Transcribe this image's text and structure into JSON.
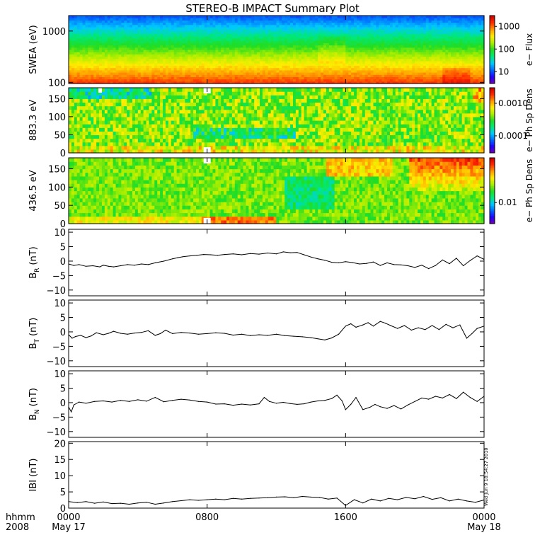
{
  "title": "STEREO-B IMPACT Summary Plot",
  "timestamp": "Wed Jun  9 18:54:27 2010",
  "time_axis": {
    "label_line1": "hhmm",
    "label_line2": "2008",
    "ticks": [
      {
        "hours": 0,
        "label": "0000",
        "sublabel": "May 17"
      },
      {
        "hours": 8,
        "label": "0800",
        "sublabel": ""
      },
      {
        "hours": 16,
        "label": "1600",
        "sublabel": ""
      },
      {
        "hours": 24,
        "label": "0000",
        "sublabel": "May 18"
      }
    ],
    "range_hours": [
      0,
      24
    ]
  },
  "colors": {
    "spectrum": [
      "#7a00b0",
      "#2000ff",
      "#0066ff",
      "#00c8ff",
      "#00e87a",
      "#22dd22",
      "#aaee00",
      "#ffee00",
      "#ff9900",
      "#ff2a00",
      "#cc0000"
    ],
    "gap": "#ffffff",
    "line": "#000000"
  },
  "chart_data": [
    {
      "type": "heatmap",
      "ylabel": "SWEA (eV)",
      "yscale": "log",
      "ylim": [
        95,
        2000
      ],
      "yticks": [
        {
          "value": 100,
          "label": "100"
        },
        {
          "value": 1000,
          "label": "1000"
        }
      ],
      "colorbar": {
        "label": "e− Flux",
        "scale": "log",
        "range": [
          3,
          3000
        ],
        "ticks": [
          {
            "value": 10,
            "label": "10"
          },
          {
            "value": 100,
            "label": "100"
          },
          {
            "value": 1000,
            "label": "1000"
          }
        ]
      }
    },
    {
      "type": "heatmap",
      "ylabel": "883.3 eV",
      "ylim": [
        0,
        180
      ],
      "yticks": [
        {
          "value": 0,
          "label": "0"
        },
        {
          "value": 50,
          "label": "50"
        },
        {
          "value": 100,
          "label": "100"
        },
        {
          "value": 150,
          "label": "150"
        }
      ],
      "colorbar": {
        "label": "e− Ph Sp Dens",
        "scale": "log",
        "range": [
          3e-05,
          0.003
        ],
        "ticks": [
          {
            "value": 0.0001,
            "label": "0.0001"
          },
          {
            "value": 0.001,
            "label": "0.0010"
          }
        ]
      }
    },
    {
      "type": "heatmap",
      "ylabel": "436.5 eV",
      "ylim": [
        0,
        180
      ],
      "yticks": [
        {
          "value": 0,
          "label": "0"
        },
        {
          "value": 50,
          "label": "50"
        },
        {
          "value": 100,
          "label": "100"
        },
        {
          "value": 150,
          "label": "150"
        }
      ],
      "colorbar": {
        "label": "e− Ph Sp Dens",
        "scale": "log",
        "range": [
          0.004,
          0.07
        ],
        "ticks": [
          {
            "value": 0.01,
            "label": "0.01"
          }
        ]
      }
    },
    {
      "type": "line",
      "ylabel": "B_R (nT)",
      "ylabel_main": "B",
      "ylabel_sub": "R",
      "ylabel_unit": "(nT)",
      "ylim": [
        -12,
        11
      ],
      "yticks": [
        {
          "value": -10,
          "label": "−10"
        },
        {
          "value": -5,
          "label": "−5"
        },
        {
          "value": 0,
          "label": "0"
        },
        {
          "value": 5,
          "label": "5"
        },
        {
          "value": 10,
          "label": "10"
        }
      ],
      "x": [
        0,
        0.3,
        0.6,
        1,
        1.4,
        1.8,
        2,
        2.3,
        2.6,
        3,
        3.4,
        3.8,
        4.2,
        4.6,
        5,
        5.5,
        6,
        6.3,
        6.6,
        7,
        7.4,
        7.8,
        8.2,
        8.6,
        9,
        9.5,
        10,
        10.5,
        11,
        11.5,
        12,
        12.4,
        12.8,
        13.2,
        13.6,
        14,
        14.4,
        14.8,
        15.2,
        15.6,
        16,
        16.4,
        16.8,
        17.2,
        17.6,
        18,
        18.4,
        18.8,
        19.2,
        19.6,
        20,
        20.4,
        20.8,
        21.2,
        21.6,
        22,
        22.4,
        22.8,
        23.2,
        23.6,
        24
      ],
      "y": [
        -1,
        -1.5,
        -1.2,
        -1.8,
        -1.6,
        -2,
        -1.4,
        -1.8,
        -2,
        -1.6,
        -1.2,
        -1.4,
        -1,
        -1.2,
        -0.6,
        0,
        0.8,
        1.2,
        1.5,
        1.8,
        2,
        2.3,
        2.2,
        2,
        2.3,
        2.5,
        2.2,
        2.6,
        2.4,
        2.8,
        2.5,
        3.2,
        2.9,
        3,
        2.2,
        1.4,
        0.8,
        0.3,
        -0.4,
        -0.6,
        -0.2,
        -0.5,
        -1,
        -0.8,
        -0.3,
        -1.5,
        -0.6,
        -1.2,
        -1.3,
        -1.6,
        -2.2,
        -1.4,
        -2.6,
        -1.5,
        0.4,
        -0.9,
        1,
        -1.6,
        0.2,
        1.8,
        0.6
      ]
    },
    {
      "type": "line",
      "ylabel": "B_T (nT)",
      "ylabel_main": "B",
      "ylabel_sub": "T",
      "ylabel_unit": "(nT)",
      "ylim": [
        -12,
        11
      ],
      "yticks": [
        {
          "value": -10,
          "label": "−10"
        },
        {
          "value": -5,
          "label": "−5"
        },
        {
          "value": 0,
          "label": "0"
        },
        {
          "value": 5,
          "label": "5"
        },
        {
          "value": 10,
          "label": "10"
        }
      ],
      "x": [
        0,
        0.2,
        0.4,
        0.7,
        1,
        1.3,
        1.6,
        2,
        2.3,
        2.6,
        3,
        3.4,
        3.8,
        4.2,
        4.6,
        5,
        5.3,
        5.6,
        6,
        6.5,
        7,
        7.5,
        8,
        8.5,
        9,
        9.5,
        10,
        10.5,
        11,
        11.5,
        12,
        12.5,
        13,
        13.5,
        14,
        14.4,
        14.8,
        15.2,
        15.6,
        16,
        16.3,
        16.6,
        17,
        17.3,
        17.6,
        18,
        18.3,
        18.6,
        19,
        19.4,
        19.8,
        20.2,
        20.6,
        21,
        21.4,
        21.8,
        22.2,
        22.6,
        23,
        23.3,
        23.6,
        24
      ],
      "y": [
        -1,
        -2.2,
        -1.6,
        -1.2,
        -2,
        -1.4,
        -0.3,
        -1,
        -0.5,
        0.2,
        -0.5,
        -0.8,
        -0.4,
        -0.2,
        0.4,
        -1.2,
        -0.6,
        0.6,
        -0.6,
        -0.2,
        -0.4,
        -0.8,
        -0.6,
        -0.3,
        -0.5,
        -1.1,
        -0.8,
        -1.3,
        -1,
        -1.2,
        -0.8,
        -1.3,
        -1.5,
        -1.7,
        -2,
        -2.4,
        -2.8,
        -2.1,
        -0.8,
        2,
        2.8,
        1.6,
        2.4,
        3.2,
        2,
        3.6,
        3,
        2.2,
        1.2,
        2.2,
        0.6,
        1.4,
        0.8,
        2.2,
        0.8,
        2.6,
        1.4,
        2.4,
        -2.2,
        -0.6,
        1.2,
        2
      ]
    },
    {
      "type": "line",
      "ylabel": "B_N (nT)",
      "ylabel_main": "B",
      "ylabel_sub": "N",
      "ylabel_unit": "(nT)",
      "ylim": [
        -12,
        11
      ],
      "yticks": [
        {
          "value": -10,
          "label": "−10"
        },
        {
          "value": -5,
          "label": "−5"
        },
        {
          "value": 0,
          "label": "0"
        },
        {
          "value": 5,
          "label": "5"
        },
        {
          "value": 10,
          "label": "10"
        }
      ],
      "x": [
        0,
        0.15,
        0.3,
        0.6,
        1,
        1.5,
        2,
        2.5,
        3,
        3.5,
        4,
        4.5,
        5,
        5.5,
        6,
        6.5,
        7,
        7.5,
        8,
        8.5,
        9,
        9.5,
        10,
        10.5,
        11,
        11.3,
        11.6,
        12,
        12.4,
        12.8,
        13.2,
        13.6,
        14,
        14.4,
        14.8,
        15.2,
        15.5,
        15.8,
        16,
        16.3,
        16.6,
        17,
        17.4,
        17.7,
        18,
        18.4,
        18.8,
        19.2,
        19.6,
        20,
        20.4,
        20.8,
        21.2,
        21.6,
        22,
        22.4,
        22.8,
        23.2,
        23.6,
        24
      ],
      "y": [
        -1.5,
        -3.2,
        -0.8,
        0.2,
        -0.2,
        0.4,
        0.6,
        0.2,
        0.8,
        0.4,
        1,
        0.5,
        1.8,
        0.3,
        0.8,
        1.2,
        0.9,
        0.4,
        0.2,
        -0.5,
        -0.4,
        -0.9,
        -0.5,
        -0.8,
        -0.4,
        1.8,
        0.4,
        -0.2,
        0.1,
        -0.3,
        -0.6,
        -0.4,
        0.2,
        0.6,
        0.8,
        1.4,
        2.6,
        0.6,
        -2.4,
        -0.6,
        1.8,
        -2.4,
        -1.6,
        -0.6,
        -1.4,
        -2,
        -1,
        -2.2,
        -0.8,
        0.4,
        1.6,
        1.2,
        2.2,
        1.6,
        2.8,
        1.4,
        3.6,
        1.8,
        0.4,
        2.2
      ]
    },
    {
      "type": "line",
      "ylabel": "|B| (nT)",
      "ylabel_main": "IBI",
      "ylabel_sub": "",
      "ylabel_unit": "(nT)",
      "ylim": [
        0,
        20.5
      ],
      "yticks": [
        {
          "value": 0,
          "label": "0"
        },
        {
          "value": 5,
          "label": "5"
        },
        {
          "value": 10,
          "label": "10"
        },
        {
          "value": 15,
          "label": "15"
        },
        {
          "value": 20,
          "label": "20"
        }
      ],
      "x": [
        0,
        0.5,
        1,
        1.5,
        2,
        2.5,
        3,
        3.5,
        4,
        4.5,
        5,
        5.5,
        6,
        6.5,
        7,
        7.5,
        8,
        8.5,
        9,
        9.5,
        10,
        10.5,
        11,
        11.5,
        12,
        12.5,
        13,
        13.5,
        14,
        14.5,
        15,
        15.5,
        16,
        16.5,
        17,
        17.5,
        18,
        18.5,
        19,
        19.5,
        20,
        20.5,
        21,
        21.5,
        22,
        22.5,
        23,
        23.5,
        24
      ],
      "y": [
        2,
        1.7,
        2,
        1.5,
        1.9,
        1.4,
        1.5,
        1.2,
        1.6,
        1.8,
        1.2,
        1.6,
        2,
        2.3,
        2.6,
        2.4,
        2.6,
        2.8,
        2.6,
        3,
        2.8,
        3,
        3.1,
        3.2,
        3.4,
        3.5,
        3.2,
        3.6,
        3.4,
        3.3,
        2.8,
        3.1,
        0.8,
        2.6,
        1.6,
        2.8,
        2.2,
        3,
        2.6,
        3.3,
        2.9,
        3.6,
        2.7,
        3.2,
        2.2,
        2.8,
        2.2,
        1.8,
        2.5
      ]
    }
  ]
}
